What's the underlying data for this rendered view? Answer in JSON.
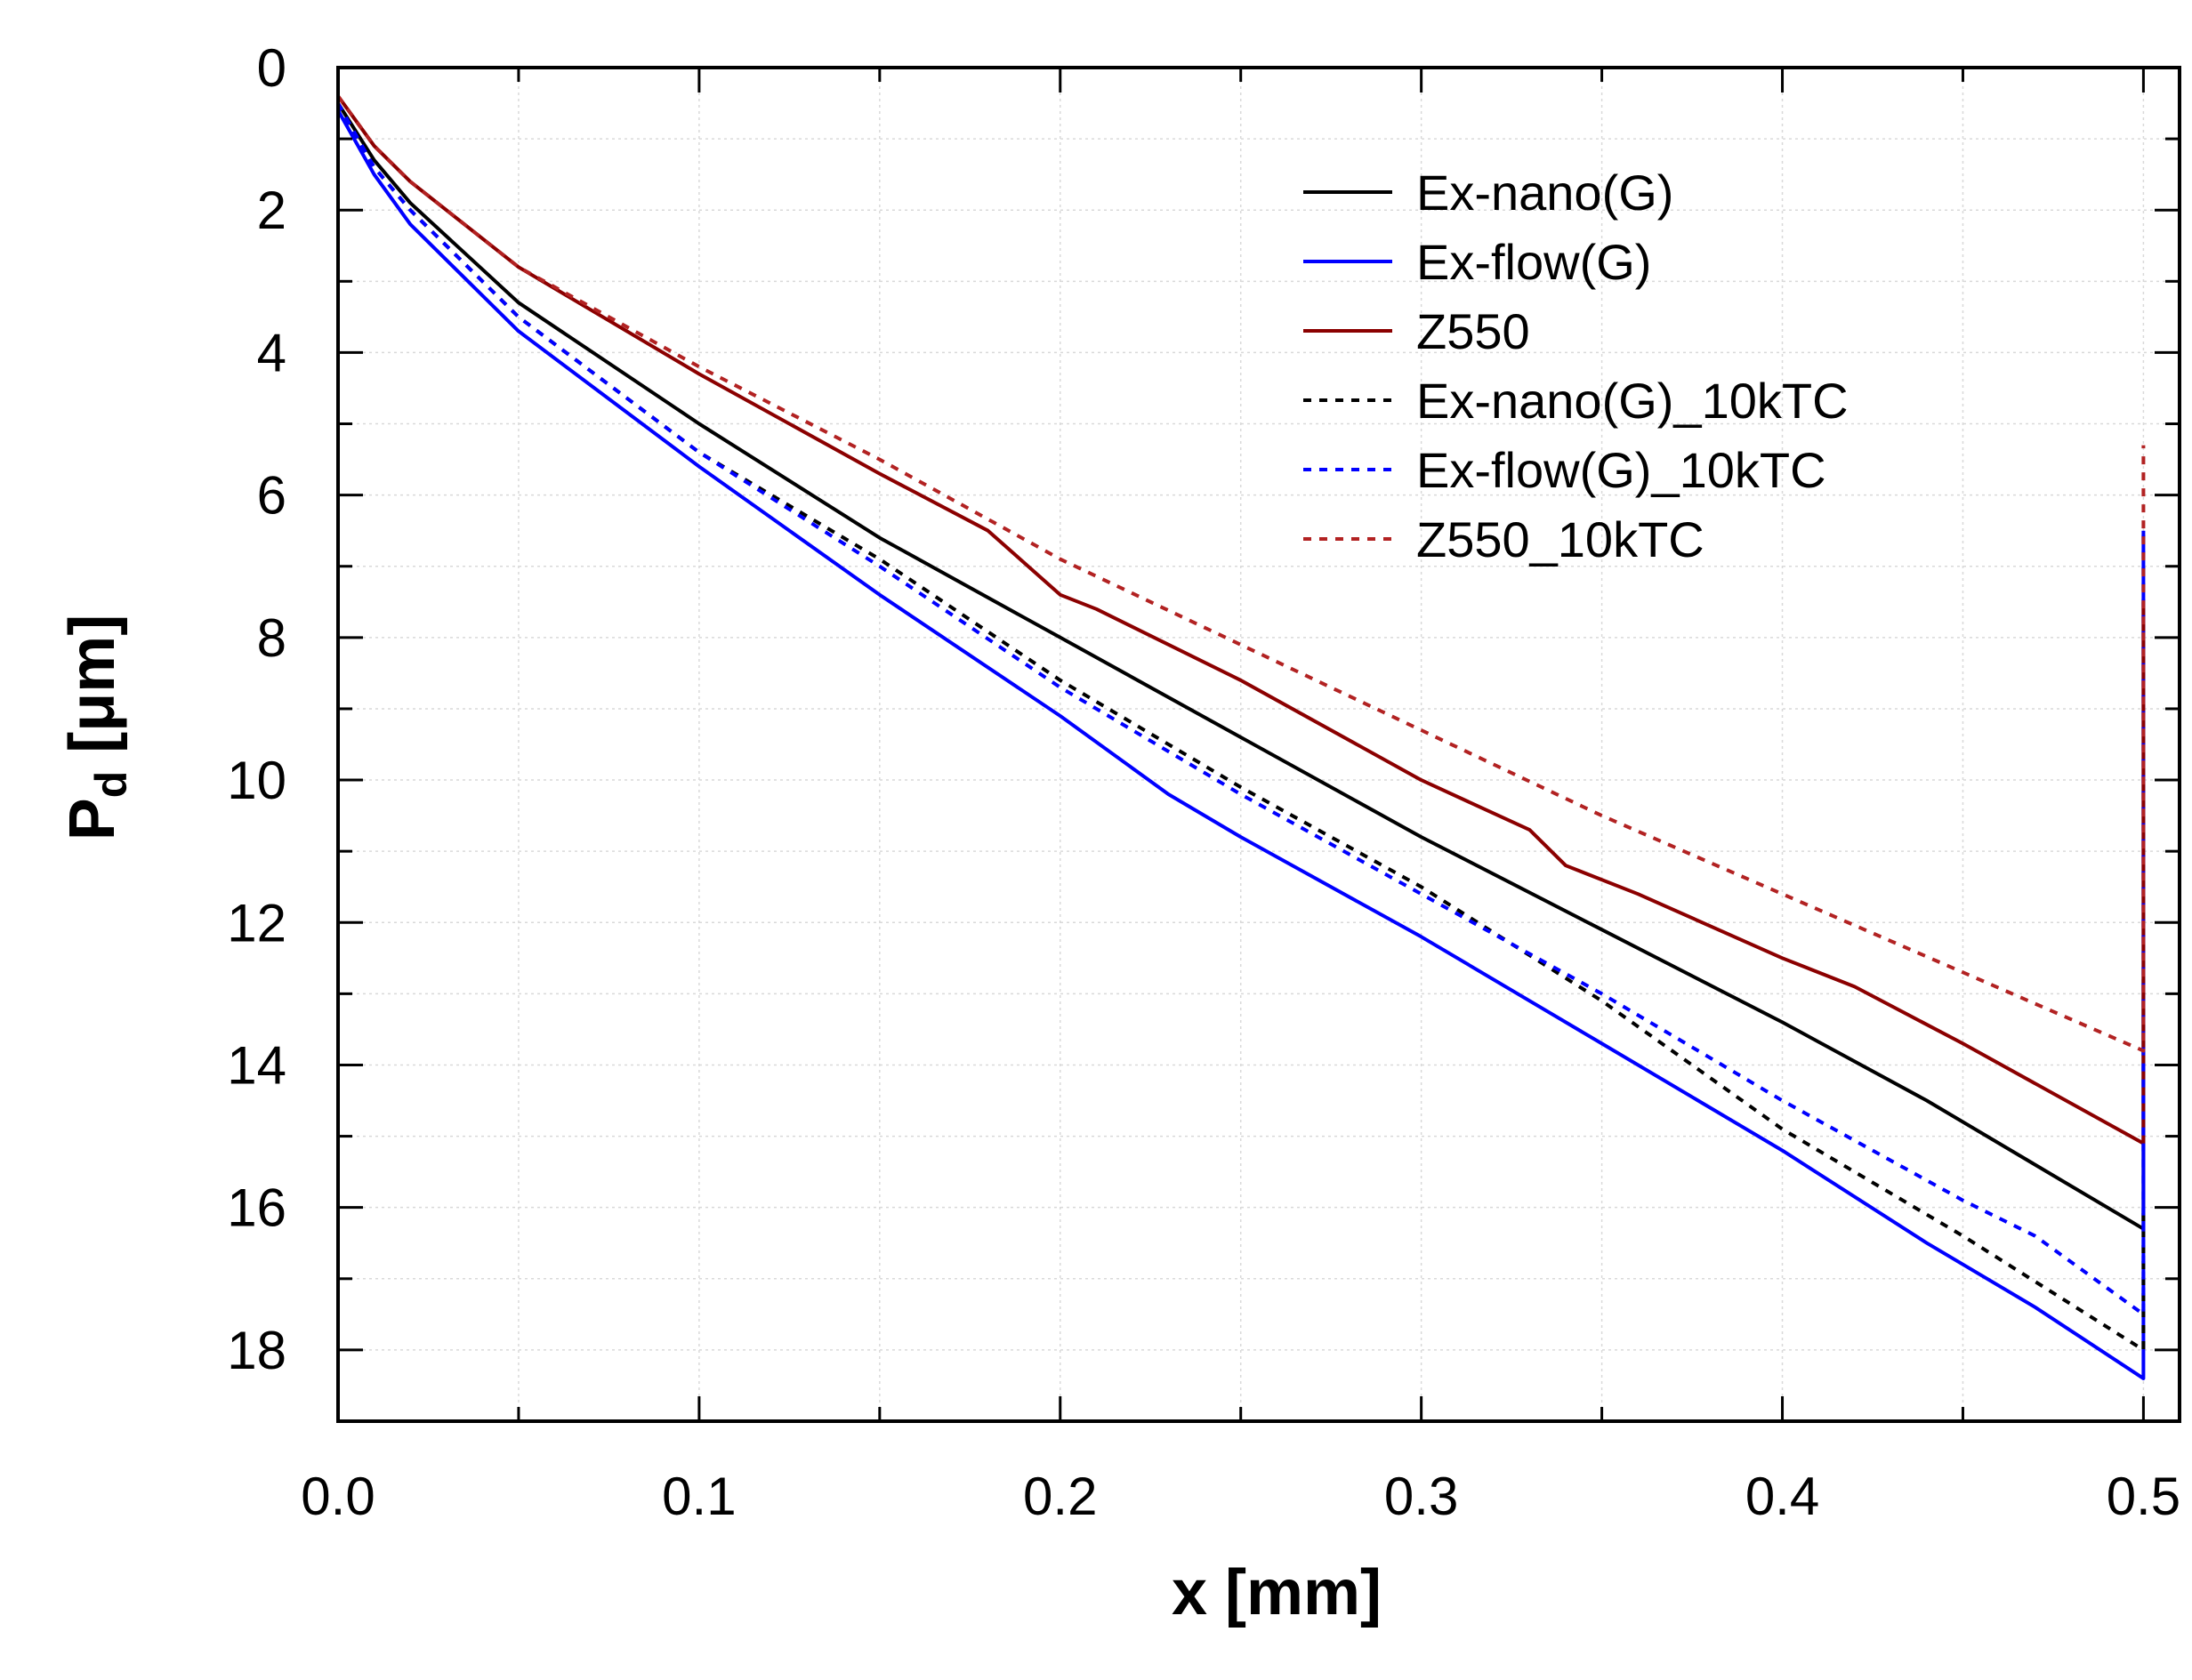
{
  "chart_data": {
    "type": "line",
    "title": "",
    "xlabel": "x [mm]",
    "ylabel_main": "P",
    "ylabel_sub": "d",
    "ylabel_unit": " [μm]",
    "xlim": [
      0.0,
      0.51
    ],
    "ylim": [
      0,
      19
    ],
    "y_inverted": true,
    "grid": true,
    "legend_position": "top-right",
    "x_ticks": [
      0.0,
      0.1,
      0.2,
      0.3,
      0.4,
      0.5
    ],
    "x_tick_labels": [
      "0.0",
      "0.1",
      "0.2",
      "0.3",
      "0.4",
      "0.5"
    ],
    "y_ticks": [
      0,
      2,
      4,
      6,
      8,
      10,
      12,
      14,
      16,
      18
    ],
    "y_tick_labels": [
      "0",
      "2",
      "4",
      "6",
      "8",
      "10",
      "12",
      "14",
      "16",
      "18"
    ],
    "series": [
      {
        "name": "Ex-nano(G)",
        "color": "#000000",
        "dash": "solid",
        "x": [
          0.0,
          0.01,
          0.02,
          0.05,
          0.1,
          0.15,
          0.2,
          0.25,
          0.3,
          0.35,
          0.4,
          0.44,
          0.47,
          0.5,
          0.5
        ],
        "y": [
          0.5,
          1.3,
          1.9,
          3.3,
          5.0,
          6.6,
          8.0,
          9.4,
          10.8,
          12.1,
          13.4,
          14.5,
          15.4,
          16.3,
          12.8
        ]
      },
      {
        "name": "Ex-flow(G)",
        "color": "#0000ff",
        "dash": "solid",
        "x": [
          0.0,
          0.01,
          0.02,
          0.05,
          0.1,
          0.15,
          0.2,
          0.23,
          0.25,
          0.3,
          0.35,
          0.4,
          0.44,
          0.47,
          0.5,
          0.5
        ],
        "y": [
          0.6,
          1.5,
          2.2,
          3.7,
          5.6,
          7.4,
          9.1,
          10.2,
          10.8,
          12.2,
          13.7,
          15.2,
          16.5,
          17.4,
          18.4,
          6.5
        ]
      },
      {
        "name": "Z550",
        "color": "#8b0000",
        "dash": "solid",
        "x": [
          0.0,
          0.01,
          0.02,
          0.05,
          0.1,
          0.15,
          0.18,
          0.2,
          0.21,
          0.25,
          0.3,
          0.33,
          0.34,
          0.36,
          0.4,
          0.42,
          0.45,
          0.5,
          0.5
        ],
        "y": [
          0.4,
          1.1,
          1.6,
          2.8,
          4.3,
          5.7,
          6.5,
          7.4,
          7.6,
          8.6,
          10.0,
          10.7,
          11.2,
          11.6,
          12.5,
          12.9,
          13.7,
          15.1,
          7.5
        ]
      },
      {
        "name": "Ex-nano(G)_10kTC",
        "color": "#000000",
        "dash": "dotted",
        "x": [
          0.0,
          0.01,
          0.02,
          0.05,
          0.1,
          0.15,
          0.2,
          0.25,
          0.3,
          0.35,
          0.4,
          0.45,
          0.5,
          0.5
        ],
        "y": [
          0.5,
          1.4,
          2.0,
          3.5,
          5.4,
          6.9,
          8.6,
          10.1,
          11.5,
          13.1,
          14.9,
          16.4,
          18.0,
          16.0
        ]
      },
      {
        "name": "Ex-flow(G)_10kTC",
        "color": "#0000ff",
        "dash": "dotted",
        "x": [
          0.0,
          0.01,
          0.02,
          0.05,
          0.1,
          0.15,
          0.2,
          0.25,
          0.3,
          0.35,
          0.4,
          0.45,
          0.47,
          0.5,
          0.5
        ],
        "y": [
          0.5,
          1.4,
          2.0,
          3.5,
          5.4,
          7.0,
          8.7,
          10.2,
          11.6,
          13.0,
          14.5,
          15.9,
          16.4,
          17.5,
          6.5
        ]
      },
      {
        "name": "Z550_10kTC",
        "color": "#b22222",
        "dash": "dotted",
        "x": [
          0.0,
          0.01,
          0.02,
          0.05,
          0.1,
          0.15,
          0.2,
          0.25,
          0.3,
          0.35,
          0.4,
          0.45,
          0.5,
          0.5
        ],
        "y": [
          0.4,
          1.1,
          1.6,
          2.8,
          4.2,
          5.5,
          6.9,
          8.1,
          9.3,
          10.5,
          11.6,
          12.7,
          13.8,
          5.3
        ]
      }
    ]
  }
}
